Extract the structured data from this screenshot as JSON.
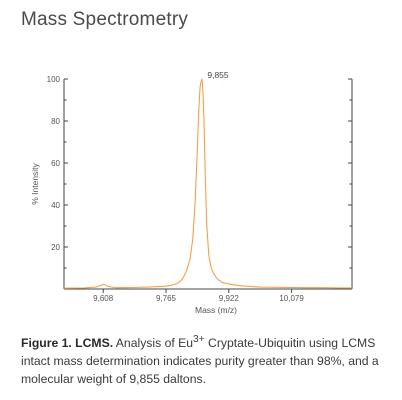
{
  "section_title": "Mass Spectrometry",
  "figure": {
    "label": "Figure 1. LCMS.",
    "caption_pre": " Analysis of Eu",
    "caption_sup": "3+",
    "caption_post": " Cryptate-Ubiquitin using LCMS intact mass determination indicates purity greater than 98%, and a molecular weight of 9,855 daltons."
  },
  "colors": {
    "line": "#f5a04a",
    "axis": "#444444",
    "text": "#555555"
  },
  "chart_data": {
    "type": "line",
    "xlabel": "Mass (m/z)",
    "ylabel": "% Intensity",
    "xlim": [
      9510,
      10230
    ],
    "ylim": [
      0,
      100
    ],
    "x_ticks": [
      {
        "value": 9608,
        "label": "9,608"
      },
      {
        "value": 9765,
        "label": "9,765"
      },
      {
        "value": 9922,
        "label": "9,922"
      },
      {
        "value": 10079,
        "label": "10,079"
      }
    ],
    "y_ticks": [
      {
        "value": 20,
        "label": "20"
      },
      {
        "value": 40,
        "label": "40"
      },
      {
        "value": 60,
        "label": "60"
      },
      {
        "value": 80,
        "label": "80"
      },
      {
        "value": 100,
        "label": "100"
      }
    ],
    "annotations": [
      {
        "x": 9855,
        "y": 100,
        "text": "9,855"
      }
    ],
    "series": [
      {
        "x": [
          9510,
          9560,
          9590,
          9600,
          9610,
          9620,
          9640,
          9680,
          9720,
          9760,
          9780,
          9795,
          9805,
          9815,
          9825,
          9832,
          9838,
          9843,
          9847,
          9850,
          9853,
          9855,
          9857,
          9860,
          9863,
          9867,
          9872,
          9878,
          9885,
          9895,
          9905,
          9915,
          9925,
          9940,
          9960,
          10000,
          10040,
          10080,
          10120,
          10160,
          10200,
          10230
        ],
        "y": [
          0.4,
          0.5,
          0.9,
          1.6,
          2.3,
          1.2,
          0.6,
          0.7,
          0.9,
          1.3,
          1.8,
          2.8,
          4.5,
          8,
          14,
          24,
          42,
          65,
          85,
          96,
          99,
          100,
          95,
          80,
          55,
          30,
          16,
          10,
          7,
          4.5,
          3.2,
          2.6,
          2.3,
          1.8,
          1.4,
          0.9,
          0.8,
          0.7,
          0.6,
          0.6,
          0.5,
          0.5
        ]
      }
    ]
  }
}
